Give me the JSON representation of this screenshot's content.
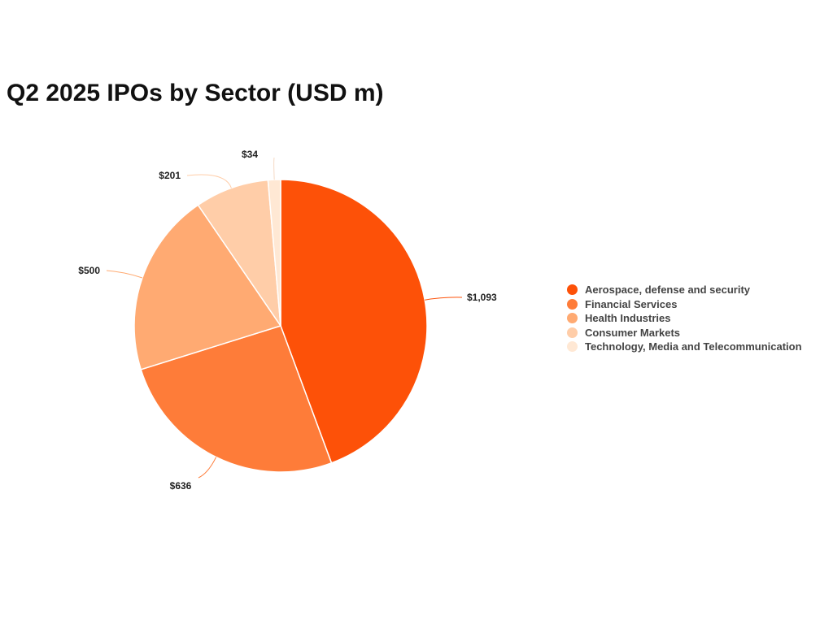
{
  "chart_data": {
    "type": "pie",
    "title": "Q2 2025 IPOs by Sector (USD m)",
    "legend_position": "right",
    "series": [
      {
        "name": "Aerospace, defense and security",
        "value": 1093,
        "label": "$1,093",
        "color": "#FD5108"
      },
      {
        "name": "Financial Services",
        "value": 636,
        "label": "$636",
        "color": "#FE7C39"
      },
      {
        "name": "Health Industries",
        "value": 500,
        "label": "$500",
        "color": "#FFAA72"
      },
      {
        "name": "Consumer Markets",
        "value": 201,
        "label": "$201",
        "color": "#FFCDA8"
      },
      {
        "name": "Technology, Media and Telecommunication",
        "value": 34,
        "label": "$34",
        "color": "#FFE8D4"
      }
    ]
  }
}
